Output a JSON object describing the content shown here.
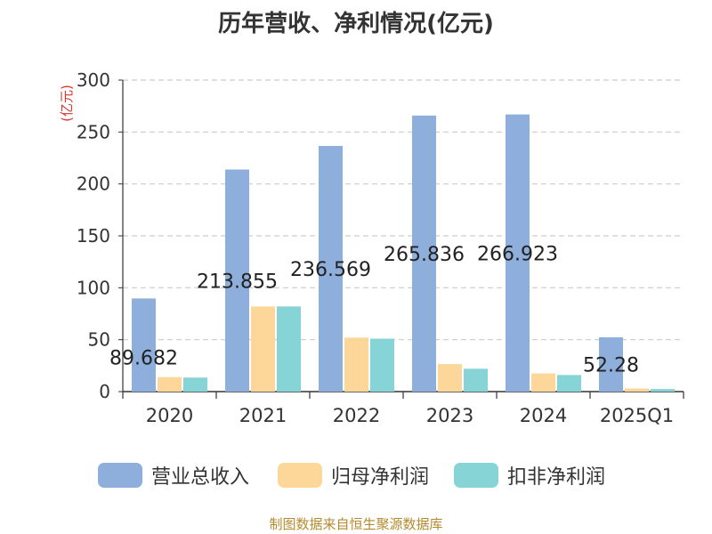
{
  "page": {
    "title": "历年营收、净利情况(亿元)",
    "source": "制图数据来自恒生聚源数据库"
  },
  "chart_data": {
    "type": "bar",
    "title": "历年营收、净利情况(亿元)",
    "ylabel": "(亿元)",
    "xlabel": "",
    "ylim": [
      0,
      300
    ],
    "yticks": [
      0,
      50,
      100,
      150,
      200,
      250,
      300
    ],
    "grid": true,
    "legend_position": "bottom",
    "categories": [
      "2020",
      "2021",
      "2022",
      "2023",
      "2024",
      "2025Q1"
    ],
    "series": [
      {
        "name": "营业总收入",
        "color": "#8eaedb",
        "values": [
          89.682,
          213.855,
          236.569,
          265.836,
          266.923,
          52.28
        ],
        "labels": [
          "89.682",
          "213.855",
          "236.569",
          "265.836",
          "266.923",
          "52.28"
        ]
      },
      {
        "name": "归母净利润",
        "color": "#fdd79a",
        "values": [
          14,
          82,
          52,
          26.5,
          17.5,
          3
        ]
      },
      {
        "name": "扣非净利润",
        "color": "#86d4d6",
        "values": [
          13.5,
          82,
          51,
          22,
          16,
          2.5
        ]
      }
    ]
  }
}
